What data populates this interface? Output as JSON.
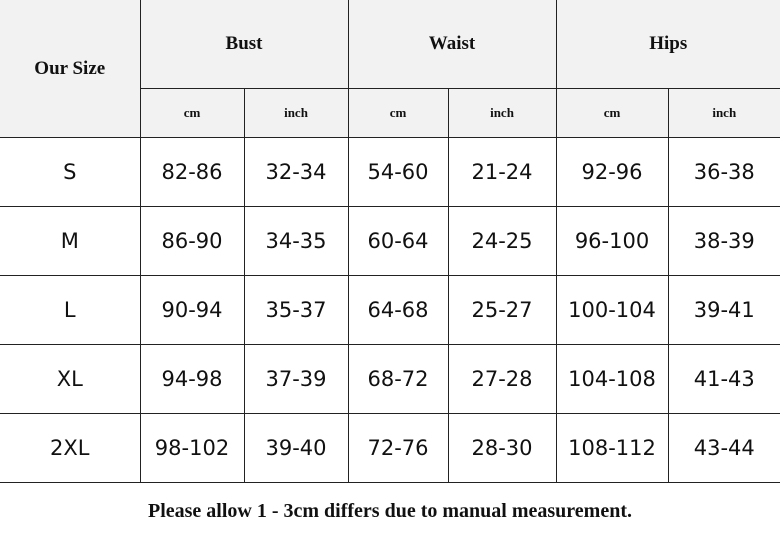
{
  "table": {
    "size_header": "Our Size",
    "groups": [
      "Bust",
      "Waist",
      "Hips"
    ],
    "units": [
      "cm",
      "inch",
      "cm",
      "inch",
      "cm",
      "inch"
    ],
    "rows": [
      {
        "size": "S",
        "values": [
          "82-86",
          "32-34",
          "54-60",
          "21-24",
          "92-96",
          "36-38"
        ]
      },
      {
        "size": "M",
        "values": [
          "86-90",
          "34-35",
          "60-64",
          "24-25",
          "96-100",
          "38-39"
        ]
      },
      {
        "size": "L",
        "values": [
          "90-94",
          "35-37",
          "64-68",
          "25-27",
          "100-104",
          "39-41"
        ]
      },
      {
        "size": "XL",
        "values": [
          "94-98",
          "37-39",
          "68-72",
          "27-28",
          "104-108",
          "41-43"
        ]
      },
      {
        "size": "2XL",
        "values": [
          "98-102",
          "39-40",
          "72-76",
          "28-30",
          "108-112",
          "43-44"
        ]
      }
    ]
  },
  "footnote": "Please allow 1 - 3cm differs due to manual measurement."
}
